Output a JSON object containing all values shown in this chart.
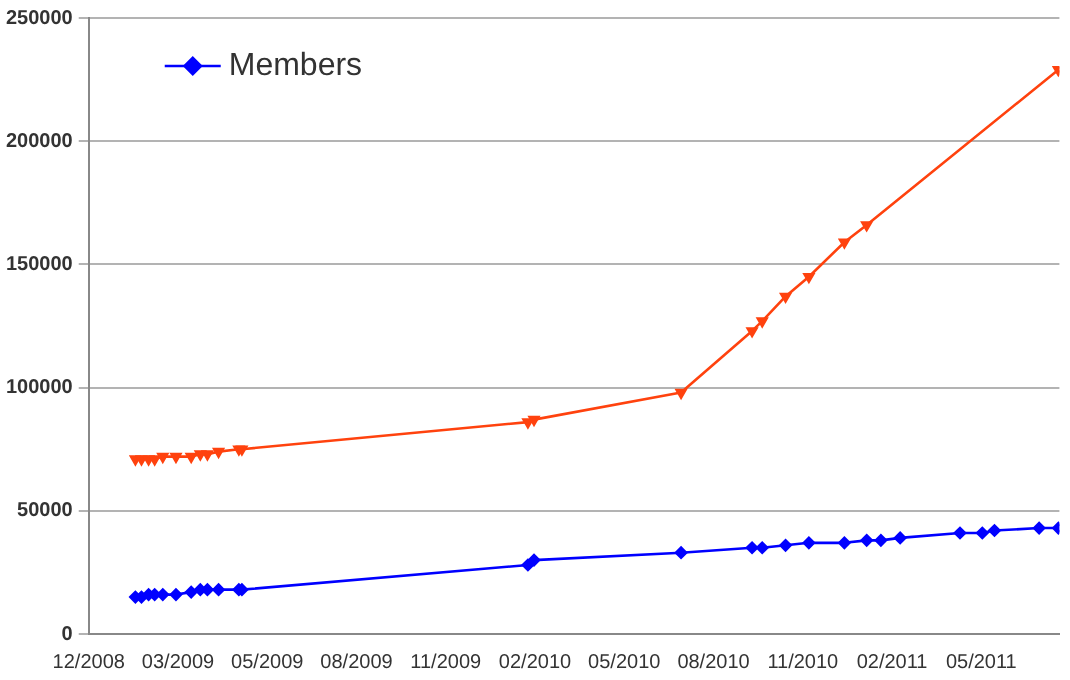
{
  "chart_data": {
    "type": "line",
    "legend": "top left",
    "grid": "y",
    "ylim": [
      0,
      250000
    ],
    "yticks": [
      0,
      50000,
      100000,
      150000,
      200000,
      250000
    ],
    "xlim": [
      "2008-12-01",
      "2011-07-16"
    ],
    "xticks": [
      {
        "value": "2008-12-01",
        "label": "12/2008"
      },
      {
        "value": "2009-02-27",
        "label": "03/2009"
      },
      {
        "value": "2009-05-26",
        "label": "05/2009"
      },
      {
        "value": "2009-08-22",
        "label": "08/2009"
      },
      {
        "value": "2009-11-18",
        "label": "11/2009"
      },
      {
        "value": "2010-02-14",
        "label": "02/2010"
      },
      {
        "value": "2010-05-13",
        "label": "05/2010"
      },
      {
        "value": "2010-08-09",
        "label": "08/2010"
      },
      {
        "value": "2010-11-05",
        "label": "11/2010"
      },
      {
        "value": "2011-02-01",
        "label": "02/2011"
      },
      {
        "value": "2011-04-30",
        "label": "05/2011"
      }
    ],
    "series": [
      {
        "name": "Members",
        "color": "#0000ff",
        "marker": "diamond",
        "x": [
          "2009-01-16",
          "2009-01-22",
          "2009-01-29",
          "2009-02-04",
          "2009-02-12",
          "2009-02-25",
          "2009-03-12",
          "2009-03-21",
          "2009-03-28",
          "2009-04-08",
          "2009-04-28",
          "2009-05-01",
          "2010-02-07",
          "2010-02-13",
          "2010-07-08",
          "2010-09-16",
          "2010-09-26",
          "2010-10-19",
          "2010-11-11",
          "2010-12-16",
          "2011-01-07",
          "2011-01-21",
          "2011-02-09",
          "2011-04-09",
          "2011-05-01",
          "2011-05-13",
          "2011-06-26",
          "2011-07-15"
        ],
        "values": [
          15000,
          15000,
          16000,
          16000,
          16000,
          16000,
          17000,
          18000,
          18000,
          18000,
          18000,
          18000,
          28000,
          30000,
          33000,
          35000,
          35000,
          36000,
          37000,
          37000,
          38000,
          38000,
          39000,
          41000,
          41000,
          42000,
          43000,
          43000
        ]
      },
      {
        "color": "#ff420e",
        "marker": "triangle",
        "x": [
          "2009-01-16",
          "2009-01-22",
          "2009-01-29",
          "2009-02-04",
          "2009-02-12",
          "2009-02-25",
          "2009-03-12",
          "2009-03-21",
          "2009-03-28",
          "2009-04-08",
          "2009-04-28",
          "2009-05-01",
          "2010-02-07",
          "2010-02-13",
          "2010-07-08",
          "2010-09-16",
          "2010-09-26",
          "2010-10-19",
          "2010-11-11",
          "2010-12-16",
          "2011-01-07",
          "2011-07-15"
        ],
        "values": [
          71000,
          71000,
          71000,
          71000,
          72000,
          72000,
          72000,
          73000,
          73000,
          74000,
          75000,
          75000,
          86000,
          87000,
          98000,
          123000,
          127000,
          137000,
          145000,
          159000,
          166000,
          229000
        ]
      }
    ]
  }
}
